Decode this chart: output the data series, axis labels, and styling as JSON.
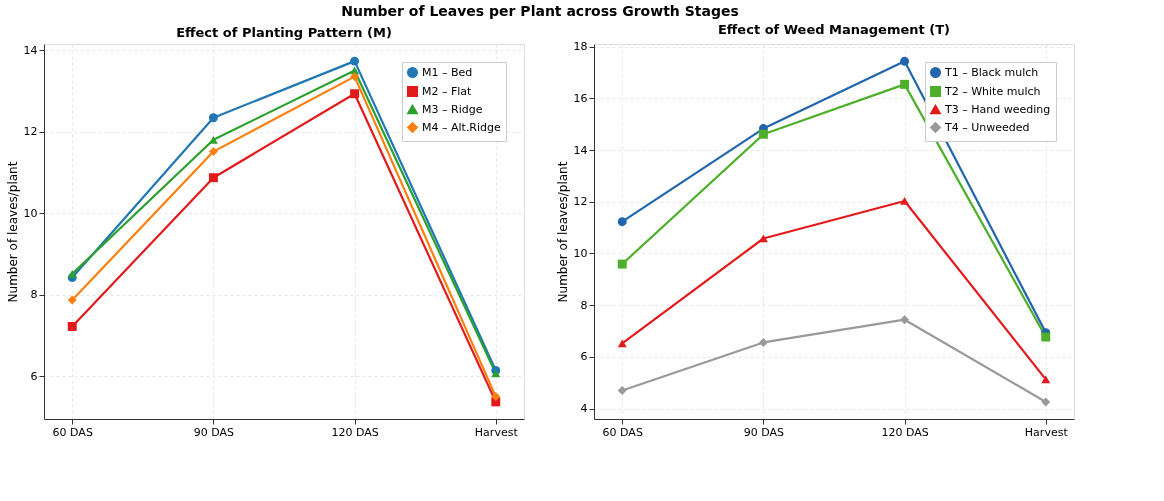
{
  "chart_data": [
    {
      "type": "line",
      "title": "Effect of Planting Pattern (M)",
      "annotations": [
        "Number of Leaves per Plant across Growth Stages"
      ],
      "ylabel": "Number of leaves/plant",
      "categories": [
        "60 DAS",
        "90 DAS",
        "120 DAS",
        "Harvest"
      ],
      "ylim": [
        4.95,
        14.15
      ],
      "yticks": [
        6,
        8,
        10,
        12,
        14
      ],
      "grid": true,
      "legend": "top right",
      "line_style": "solid",
      "series": [
        {
          "name": "M1 – Bed",
          "color": "#1f77b4",
          "marker": "circle",
          "values": [
            8.42,
            12.34,
            13.73,
            6.14
          ]
        },
        {
          "name": "M2 – Flat",
          "color": "#e31a1c",
          "marker": "square",
          "values": [
            7.22,
            10.87,
            12.93,
            5.37
          ]
        },
        {
          "name": "M3 – Ridge",
          "color": "#2ca02c",
          "marker": "triangle",
          "values": [
            8.51,
            11.8,
            13.5,
            6.07
          ]
        },
        {
          "name": "M4 – Alt.Ridge",
          "color": "#ff7f0e",
          "marker": "diamond",
          "values": [
            7.87,
            11.51,
            13.35,
            5.5
          ]
        }
      ]
    },
    {
      "type": "line",
      "title": "Effect of Weed Management (T)",
      "ylabel": "Number of leaves/plant",
      "categories": [
        "60 DAS",
        "90 DAS",
        "120 DAS",
        "Harvest"
      ],
      "ylim": [
        3.6,
        18.1
      ],
      "yticks": [
        4,
        6,
        8,
        10,
        12,
        14,
        16,
        18
      ],
      "grid": true,
      "legend": "top right",
      "line_style": "solid",
      "series": [
        {
          "name": "T1 – Black mulch",
          "color": "#2166ac",
          "marker": "circle",
          "values": [
            11.23,
            14.83,
            17.43,
            6.94
          ]
        },
        {
          "name": "T2 – White mulch",
          "color": "#4daf2a",
          "marker": "square",
          "values": [
            9.59,
            14.61,
            16.54,
            6.77
          ]
        },
        {
          "name": "T3 – Hand weeding",
          "color": "#e31a1c",
          "marker": "triangle",
          "values": [
            6.52,
            10.58,
            12.03,
            5.13
          ]
        },
        {
          "name": "T4 – Unweeded",
          "color": "#999999",
          "marker": "diamond",
          "values": [
            4.7,
            6.56,
            7.44,
            4.26
          ]
        }
      ]
    }
  ]
}
